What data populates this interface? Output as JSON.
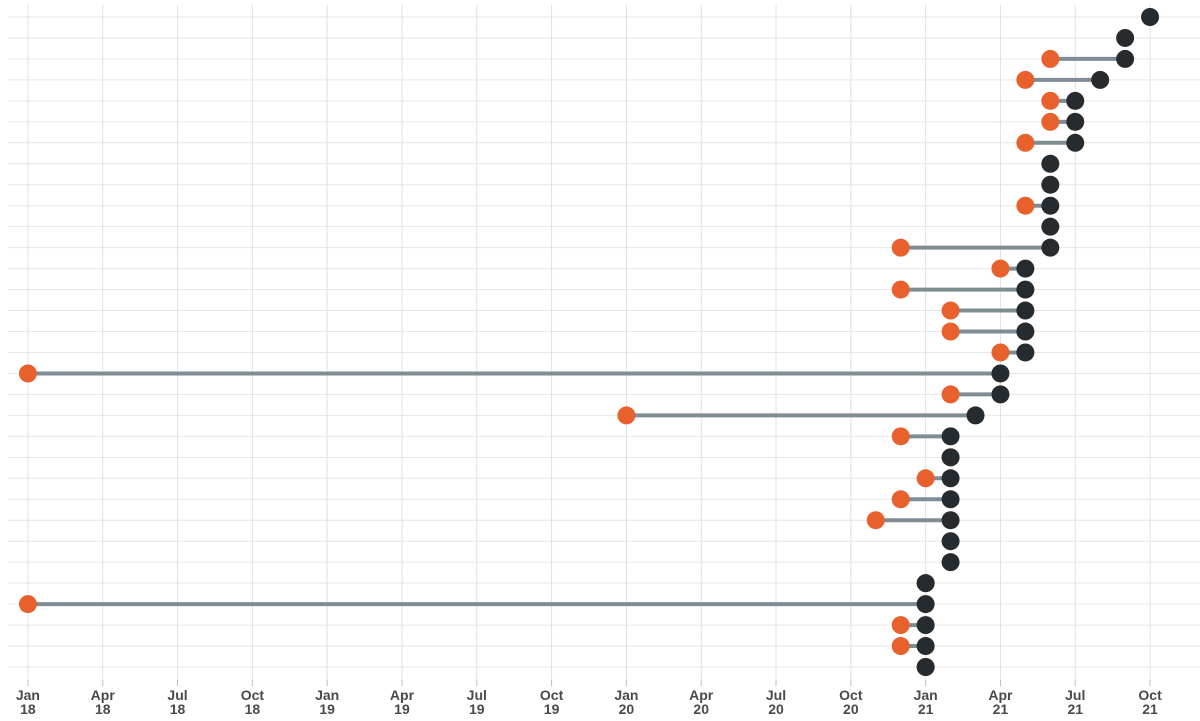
{
  "chart_data": {
    "type": "dumbbell",
    "xlim": [
      "2017-12",
      "2021-11"
    ],
    "xticks": [
      {
        "value": "2018-01",
        "label": "Jan\n18"
      },
      {
        "value": "2018-04",
        "label": "Apr\n18"
      },
      {
        "value": "2018-07",
        "label": "Jul\n18"
      },
      {
        "value": "2018-10",
        "label": "Oct\n18"
      },
      {
        "value": "2019-01",
        "label": "Jan\n19"
      },
      {
        "value": "2019-04",
        "label": "Apr\n19"
      },
      {
        "value": "2019-07",
        "label": "Jul\n19"
      },
      {
        "value": "2019-10",
        "label": "Oct\n19"
      },
      {
        "value": "2020-01",
        "label": "Jan\n20"
      },
      {
        "value": "2020-04",
        "label": "Apr\n20"
      },
      {
        "value": "2020-07",
        "label": "Jul\n20"
      },
      {
        "value": "2020-10",
        "label": "Oct\n20"
      },
      {
        "value": "2021-01",
        "label": "Jan\n21"
      },
      {
        "value": "2021-04",
        "label": "Apr\n21"
      },
      {
        "value": "2021-07",
        "label": "Jul\n21"
      },
      {
        "value": "2021-10",
        "label": "Oct\n21"
      }
    ],
    "grid": true,
    "connector_color": "#7f8c94",
    "series": [
      {
        "color": "#e8602c",
        "values": [
          null,
          null,
          "2021-06",
          "2021-05",
          "2021-06",
          "2021-06",
          "2021-05",
          null,
          null,
          "2021-05",
          null,
          "2020-12",
          "2021-04",
          "2020-12",
          "2021-02",
          "2021-02",
          "2021-04",
          "2018-01",
          "2021-02",
          "2020-01",
          "2020-12",
          "2021-02",
          "2021-01",
          "2020-12",
          "2020-11",
          null,
          null,
          "2021-01",
          "2018-01",
          "2020-12",
          "2020-12",
          "2021-01"
        ]
      },
      {
        "color": "#262b30",
        "values": [
          "2021-10",
          "2021-09",
          "2021-09",
          "2021-08",
          "2021-07",
          "2021-07",
          "2021-07",
          "2021-06",
          "2021-06",
          "2021-06",
          "2021-06",
          "2021-06",
          "2021-05",
          "2021-05",
          "2021-05",
          "2021-05",
          "2021-05",
          "2021-04",
          "2021-04",
          "2021-03",
          "2021-02",
          "2021-02",
          "2021-02",
          "2021-02",
          "2021-02",
          "2021-02",
          "2021-02",
          "2021-01",
          "2021-01",
          "2021-01",
          "2021-01",
          "2021-01"
        ]
      }
    ]
  }
}
